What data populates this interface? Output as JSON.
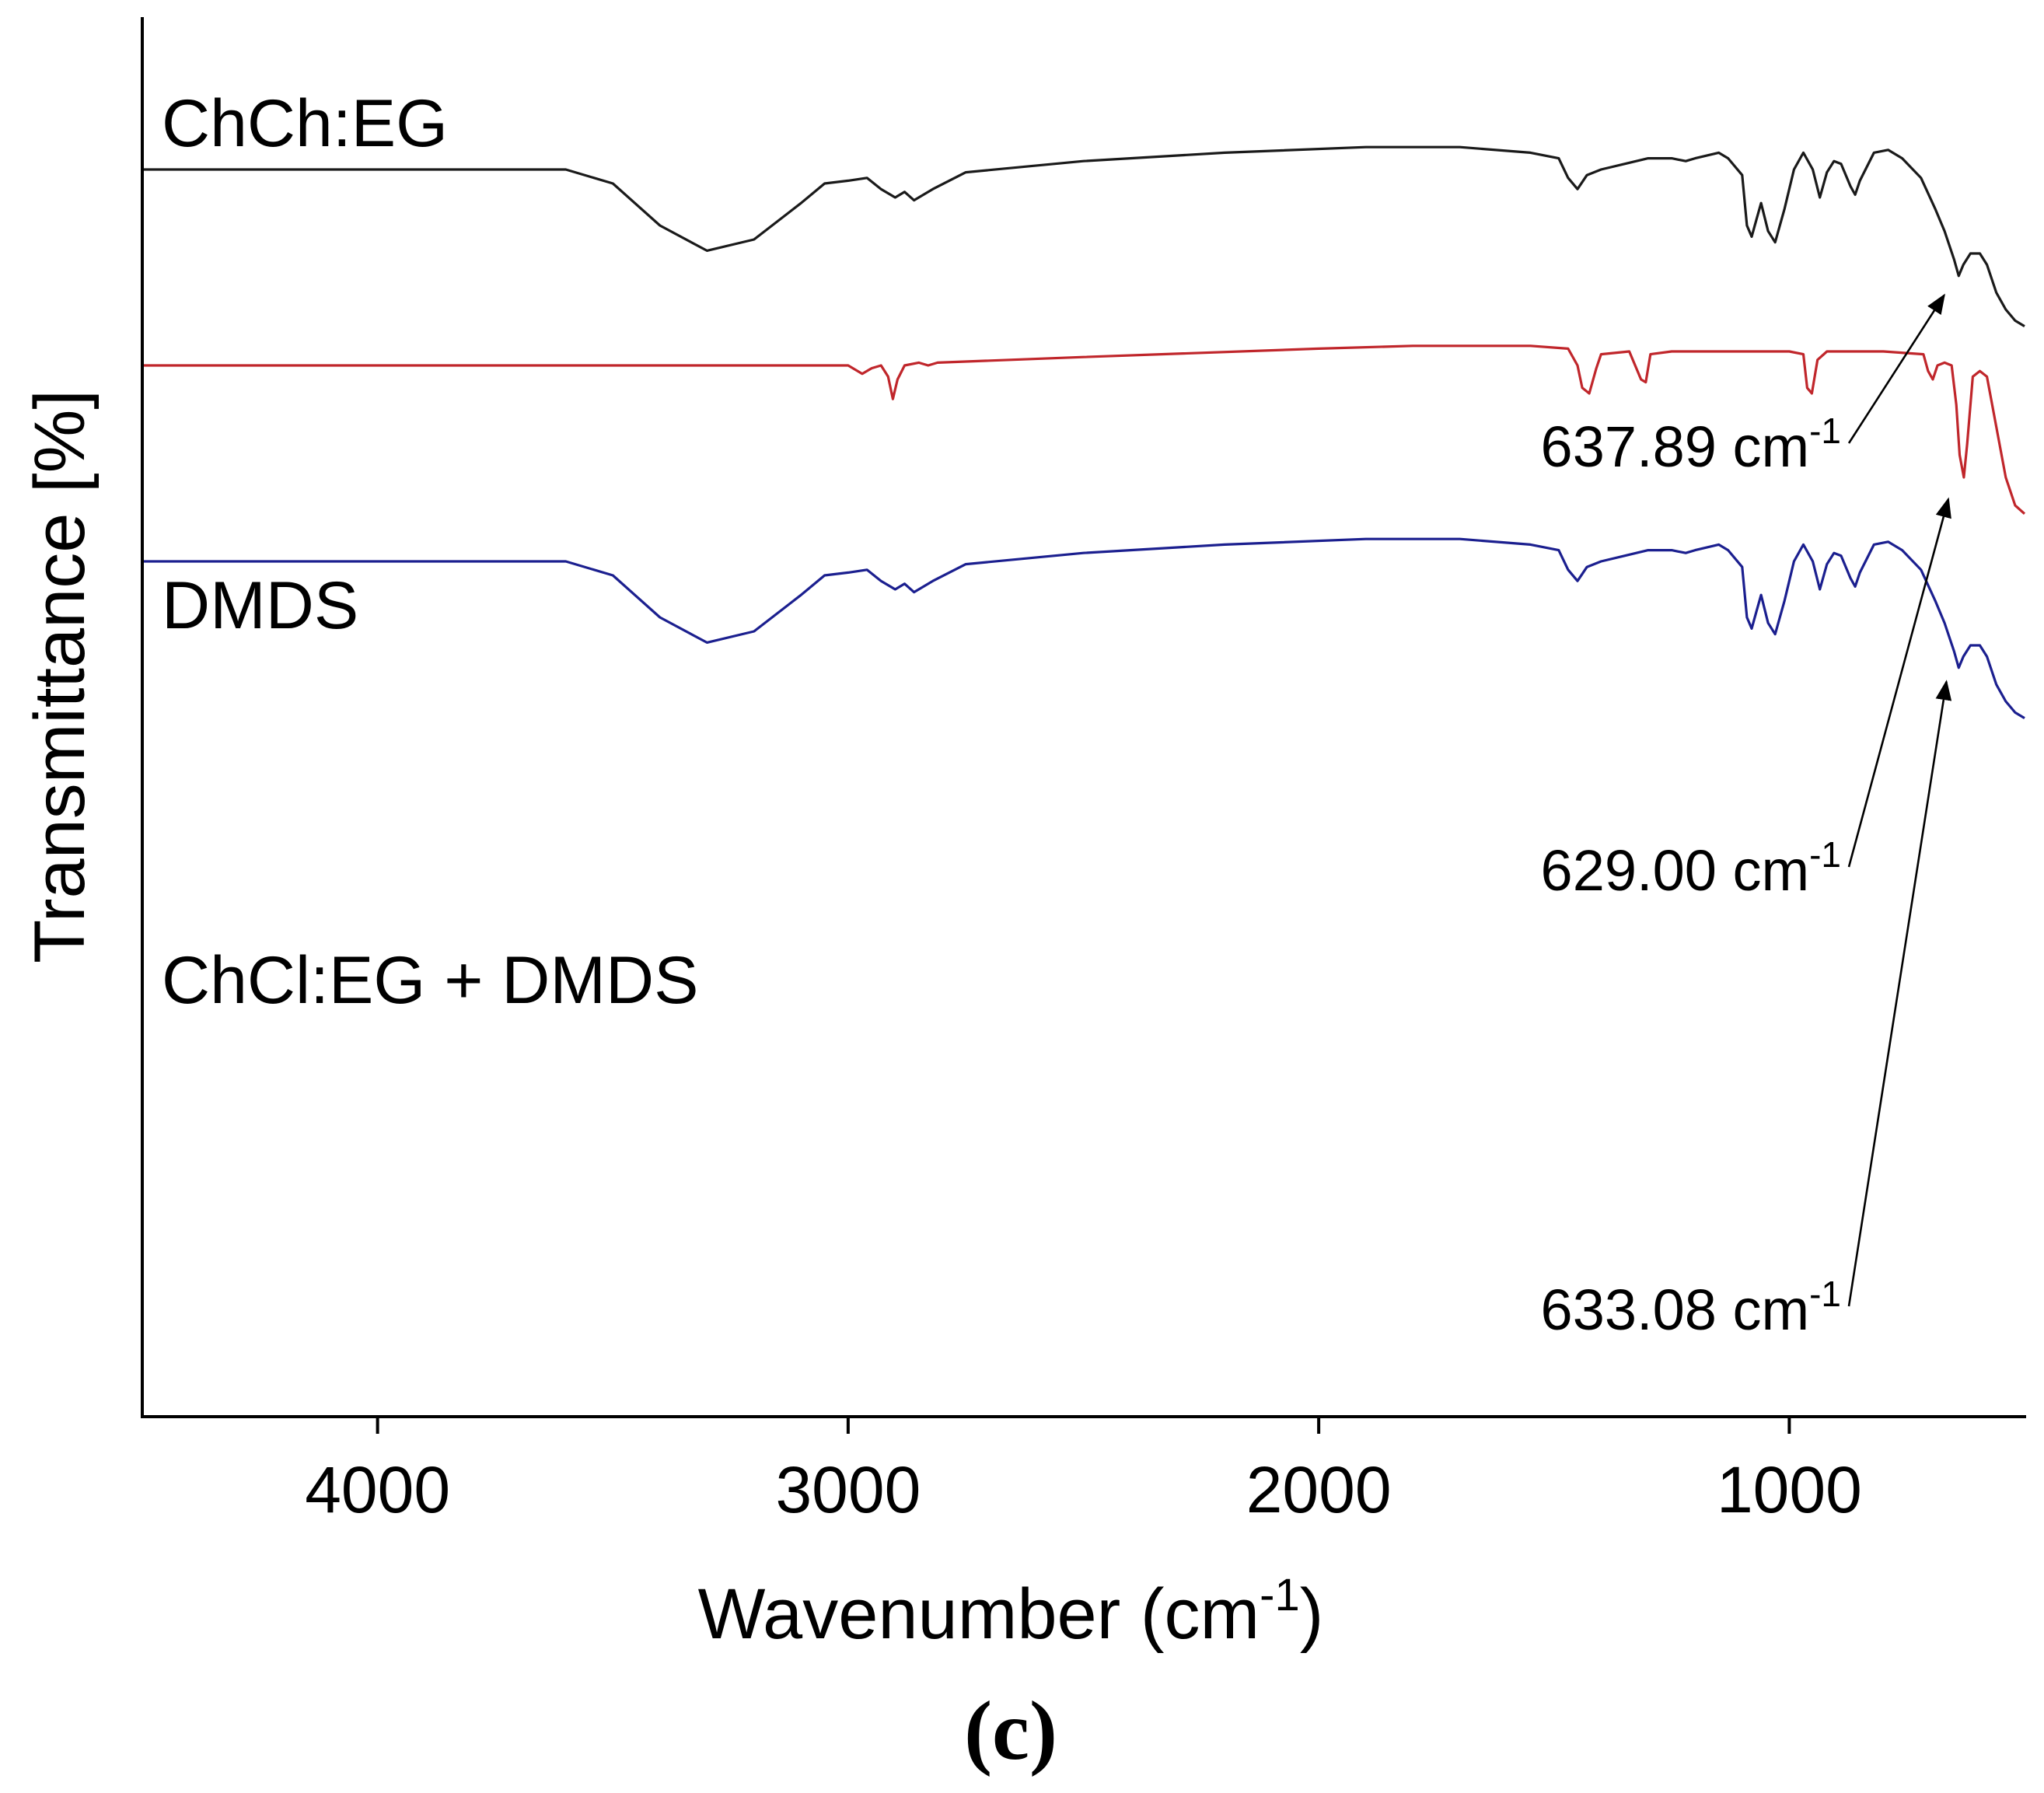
{
  "chart_data": {
    "type": "line",
    "subtitle": "(c)",
    "xlabel": "Wavenumber (cm",
    "xlabel_sup": "-1",
    "xlabel_tail": ")",
    "ylabel": "Transmittance [%]",
    "xlim": [
      4500,
      500
    ],
    "xticks": [
      4000,
      3000,
      2000,
      1000
    ],
    "xtick_labels": [
      "4000",
      "3000",
      "2000",
      "1000"
    ],
    "y_ticks_shown": false,
    "series": [
      {
        "name": "ChCh:EG",
        "color": "#1a1a1a",
        "offset": 70,
        "annotation": {
          "value": "637.89 cm",
          "sup": "-1",
          "x": 637.89
        },
        "points": [
          [
            4500,
            100
          ],
          [
            3600,
            100
          ],
          [
            3500,
            95
          ],
          [
            3400,
            80
          ],
          [
            3300,
            71
          ],
          [
            3200,
            75
          ],
          [
            3100,
            88
          ],
          [
            3050,
            95
          ],
          [
            3000,
            96
          ],
          [
            2960,
            97
          ],
          [
            2930,
            93
          ],
          [
            2900,
            90
          ],
          [
            2880,
            92
          ],
          [
            2860,
            89
          ],
          [
            2820,
            93
          ],
          [
            2750,
            99
          ],
          [
            2500,
            103
          ],
          [
            2200,
            106
          ],
          [
            1900,
            108
          ],
          [
            1700,
            108
          ],
          [
            1550,
            106
          ],
          [
            1490,
            104
          ],
          [
            1470,
            97
          ],
          [
            1450,
            93
          ],
          [
            1430,
            98
          ],
          [
            1400,
            100
          ],
          [
            1350,
            102
          ],
          [
            1300,
            104
          ],
          [
            1250,
            104
          ],
          [
            1220,
            103
          ],
          [
            1200,
            104
          ],
          [
            1150,
            106
          ],
          [
            1130,
            104
          ],
          [
            1100,
            98
          ],
          [
            1090,
            80
          ],
          [
            1080,
            76
          ],
          [
            1070,
            82
          ],
          [
            1060,
            88
          ],
          [
            1045,
            78
          ],
          [
            1030,
            74
          ],
          [
            1010,
            86
          ],
          [
            990,
            100
          ],
          [
            970,
            106
          ],
          [
            950,
            100
          ],
          [
            935,
            90
          ],
          [
            920,
            99
          ],
          [
            905,
            103
          ],
          [
            890,
            102
          ],
          [
            870,
            94
          ],
          [
            860,
            91
          ],
          [
            850,
            96
          ],
          [
            820,
            106
          ],
          [
            790,
            107
          ],
          [
            760,
            104
          ],
          [
            720,
            97
          ],
          [
            690,
            86
          ],
          [
            670,
            78
          ],
          [
            650,
            68
          ],
          [
            640,
            62
          ],
          [
            630,
            66
          ],
          [
            615,
            70
          ],
          [
            595,
            70
          ],
          [
            580,
            66
          ],
          [
            560,
            56
          ],
          [
            540,
            50
          ],
          [
            520,
            46
          ],
          [
            500,
            44
          ]
        ]
      },
      {
        "name": "DMDS",
        "color": "#c0262b",
        "offset": 0,
        "annotation": {
          "value": "629.00 cm",
          "sup": "-1",
          "x": 629.0
        },
        "points": [
          [
            4500,
            100
          ],
          [
            3200,
            100
          ],
          [
            3000,
            100
          ],
          [
            2970,
            97
          ],
          [
            2950,
            99
          ],
          [
            2930,
            100
          ],
          [
            2915,
            96
          ],
          [
            2905,
            88
          ],
          [
            2895,
            95
          ],
          [
            2880,
            100
          ],
          [
            2850,
            101
          ],
          [
            2830,
            100
          ],
          [
            2810,
            101
          ],
          [
            2500,
            103
          ],
          [
            2000,
            106
          ],
          [
            1800,
            107
          ],
          [
            1550,
            107
          ],
          [
            1470,
            106
          ],
          [
            1450,
            100
          ],
          [
            1440,
            92
          ],
          [
            1425,
            90
          ],
          [
            1410,
            99
          ],
          [
            1400,
            104
          ],
          [
            1340,
            105
          ],
          [
            1315,
            95
          ],
          [
            1305,
            94
          ],
          [
            1295,
            104
          ],
          [
            1250,
            105
          ],
          [
            1000,
            105
          ],
          [
            970,
            104
          ],
          [
            962,
            92
          ],
          [
            952,
            90
          ],
          [
            940,
            102
          ],
          [
            920,
            105
          ],
          [
            800,
            105
          ],
          [
            715,
            104
          ],
          [
            705,
            98
          ],
          [
            695,
            95
          ],
          [
            685,
            100
          ],
          [
            670,
            101
          ],
          [
            655,
            100
          ],
          [
            645,
            86
          ],
          [
            638,
            68
          ],
          [
            629,
            60
          ],
          [
            622,
            72
          ],
          [
            610,
            96
          ],
          [
            595,
            98
          ],
          [
            580,
            96
          ],
          [
            560,
            78
          ],
          [
            540,
            60
          ],
          [
            520,
            50
          ],
          [
            500,
            47
          ]
        ]
      },
      {
        "name": "ChCl:EG + DMDS",
        "color": "#1b1f8f",
        "offset": -70,
        "annotation": {
          "value": "633.08 cm",
          "sup": "-1",
          "x": 633.08
        },
        "points": [
          [
            4500,
            100
          ],
          [
            3600,
            100
          ],
          [
            3500,
            95
          ],
          [
            3400,
            80
          ],
          [
            3300,
            71
          ],
          [
            3200,
            75
          ],
          [
            3100,
            88
          ],
          [
            3050,
            95
          ],
          [
            3000,
            96
          ],
          [
            2960,
            97
          ],
          [
            2930,
            93
          ],
          [
            2900,
            90
          ],
          [
            2880,
            92
          ],
          [
            2860,
            89
          ],
          [
            2820,
            93
          ],
          [
            2750,
            99
          ],
          [
            2500,
            103
          ],
          [
            2200,
            106
          ],
          [
            1900,
            108
          ],
          [
            1700,
            108
          ],
          [
            1550,
            106
          ],
          [
            1490,
            104
          ],
          [
            1470,
            97
          ],
          [
            1450,
            93
          ],
          [
            1430,
            98
          ],
          [
            1400,
            100
          ],
          [
            1350,
            102
          ],
          [
            1300,
            104
          ],
          [
            1250,
            104
          ],
          [
            1220,
            103
          ],
          [
            1200,
            104
          ],
          [
            1150,
            106
          ],
          [
            1130,
            104
          ],
          [
            1100,
            98
          ],
          [
            1090,
            80
          ],
          [
            1080,
            76
          ],
          [
            1070,
            82
          ],
          [
            1060,
            88
          ],
          [
            1045,
            78
          ],
          [
            1030,
            74
          ],
          [
            1010,
            86
          ],
          [
            990,
            100
          ],
          [
            970,
            106
          ],
          [
            950,
            100
          ],
          [
            935,
            90
          ],
          [
            920,
            99
          ],
          [
            905,
            103
          ],
          [
            890,
            102
          ],
          [
            870,
            94
          ],
          [
            860,
            91
          ],
          [
            850,
            96
          ],
          [
            820,
            106
          ],
          [
            790,
            107
          ],
          [
            760,
            104
          ],
          [
            720,
            97
          ],
          [
            690,
            86
          ],
          [
            670,
            78
          ],
          [
            650,
            68
          ],
          [
            640,
            62
          ],
          [
            630,
            66
          ],
          [
            615,
            70
          ],
          [
            595,
            70
          ],
          [
            580,
            66
          ],
          [
            560,
            56
          ],
          [
            540,
            50
          ],
          [
            520,
            46
          ],
          [
            500,
            44
          ]
        ]
      }
    ]
  }
}
